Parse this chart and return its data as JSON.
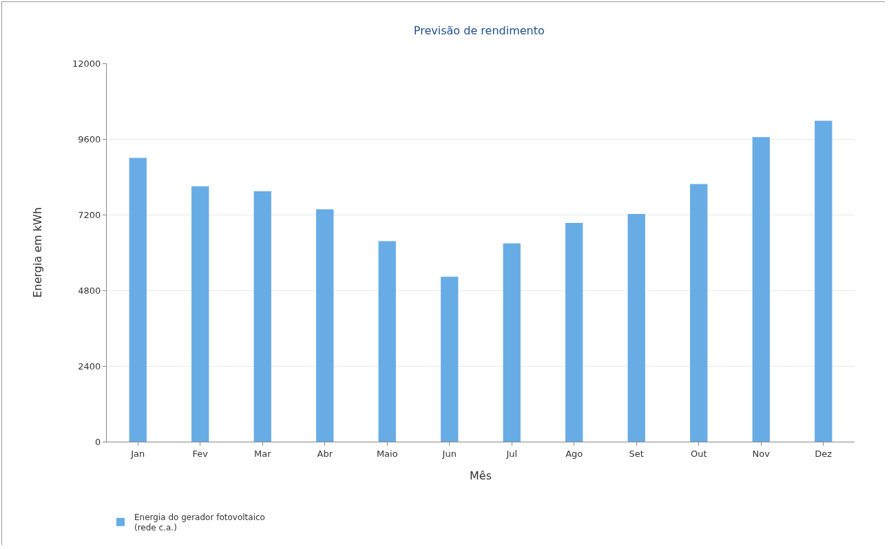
{
  "chart_data": {
    "type": "bar",
    "title": "Previsão de rendimento",
    "xlabel": "Mês",
    "ylabel": "Energia em kWh",
    "categories": [
      "Jan",
      "Fev",
      "Mar",
      "Abr",
      "Maio",
      "Jun",
      "Jul",
      "Ago",
      "Set",
      "Out",
      "Nov",
      "Dez"
    ],
    "series": [
      {
        "name": "Energia do gerador fotovoltaico\n(rede c.a.)",
        "color": "#68ace6",
        "values": [
          9000,
          8100,
          7940,
          7370,
          6360,
          5230,
          6290,
          6940,
          7220,
          8170,
          9660,
          10180
        ]
      }
    ],
    "ylim": [
      0,
      12000
    ],
    "yticks": [
      0,
      2400,
      4800,
      7200,
      9600,
      12000
    ],
    "grid": "y",
    "legend": "bottom left"
  }
}
